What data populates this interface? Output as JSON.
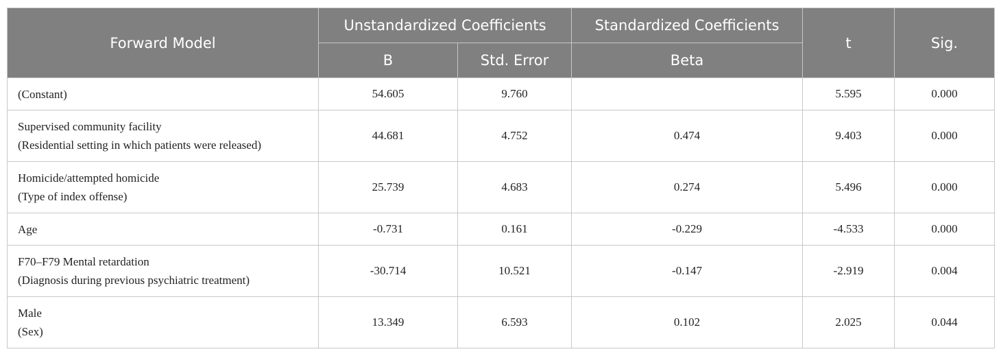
{
  "table": {
    "header": {
      "model": "Forward Model",
      "unstandardized": "Unstandardized Coefficients",
      "standardized": "Standardized Coefficients",
      "t": "t",
      "sig": "Sig.",
      "b": "B",
      "std_error": "Std. Error",
      "beta": "Beta"
    },
    "rows": [
      {
        "label": [
          "(Constant)"
        ],
        "cells": [
          "54.605",
          "9.760",
          null,
          "5.595",
          "0.000"
        ]
      },
      {
        "label": [
          "Supervised community facility",
          "(Residential setting in which patients were released)"
        ],
        "cells": [
          "44.681",
          "4.752",
          "0.474",
          "9.403",
          "0.000"
        ]
      },
      {
        "label": [
          "Homicide/attempted homicide",
          "(Type of index offense)"
        ],
        "cells": [
          "25.739",
          "4.683",
          "0.274",
          "5.496",
          "0.000"
        ]
      },
      {
        "label": [
          "Age"
        ],
        "cells": [
          "-0.731",
          "0.161",
          "-0.229",
          "-4.533",
          "0.000"
        ]
      },
      {
        "label": [
          "F70–F79 Mental retardation",
          "(Diagnosis during previous psychiatric treatment)"
        ],
        "cells": [
          "-30.714",
          "10.521",
          "-0.147",
          "-2.919",
          "0.004"
        ]
      },
      {
        "label": [
          "Male",
          "(Sex)"
        ],
        "cells": [
          "13.349",
          "6.593",
          "0.102",
          "2.025",
          "0.044"
        ]
      }
    ]
  }
}
